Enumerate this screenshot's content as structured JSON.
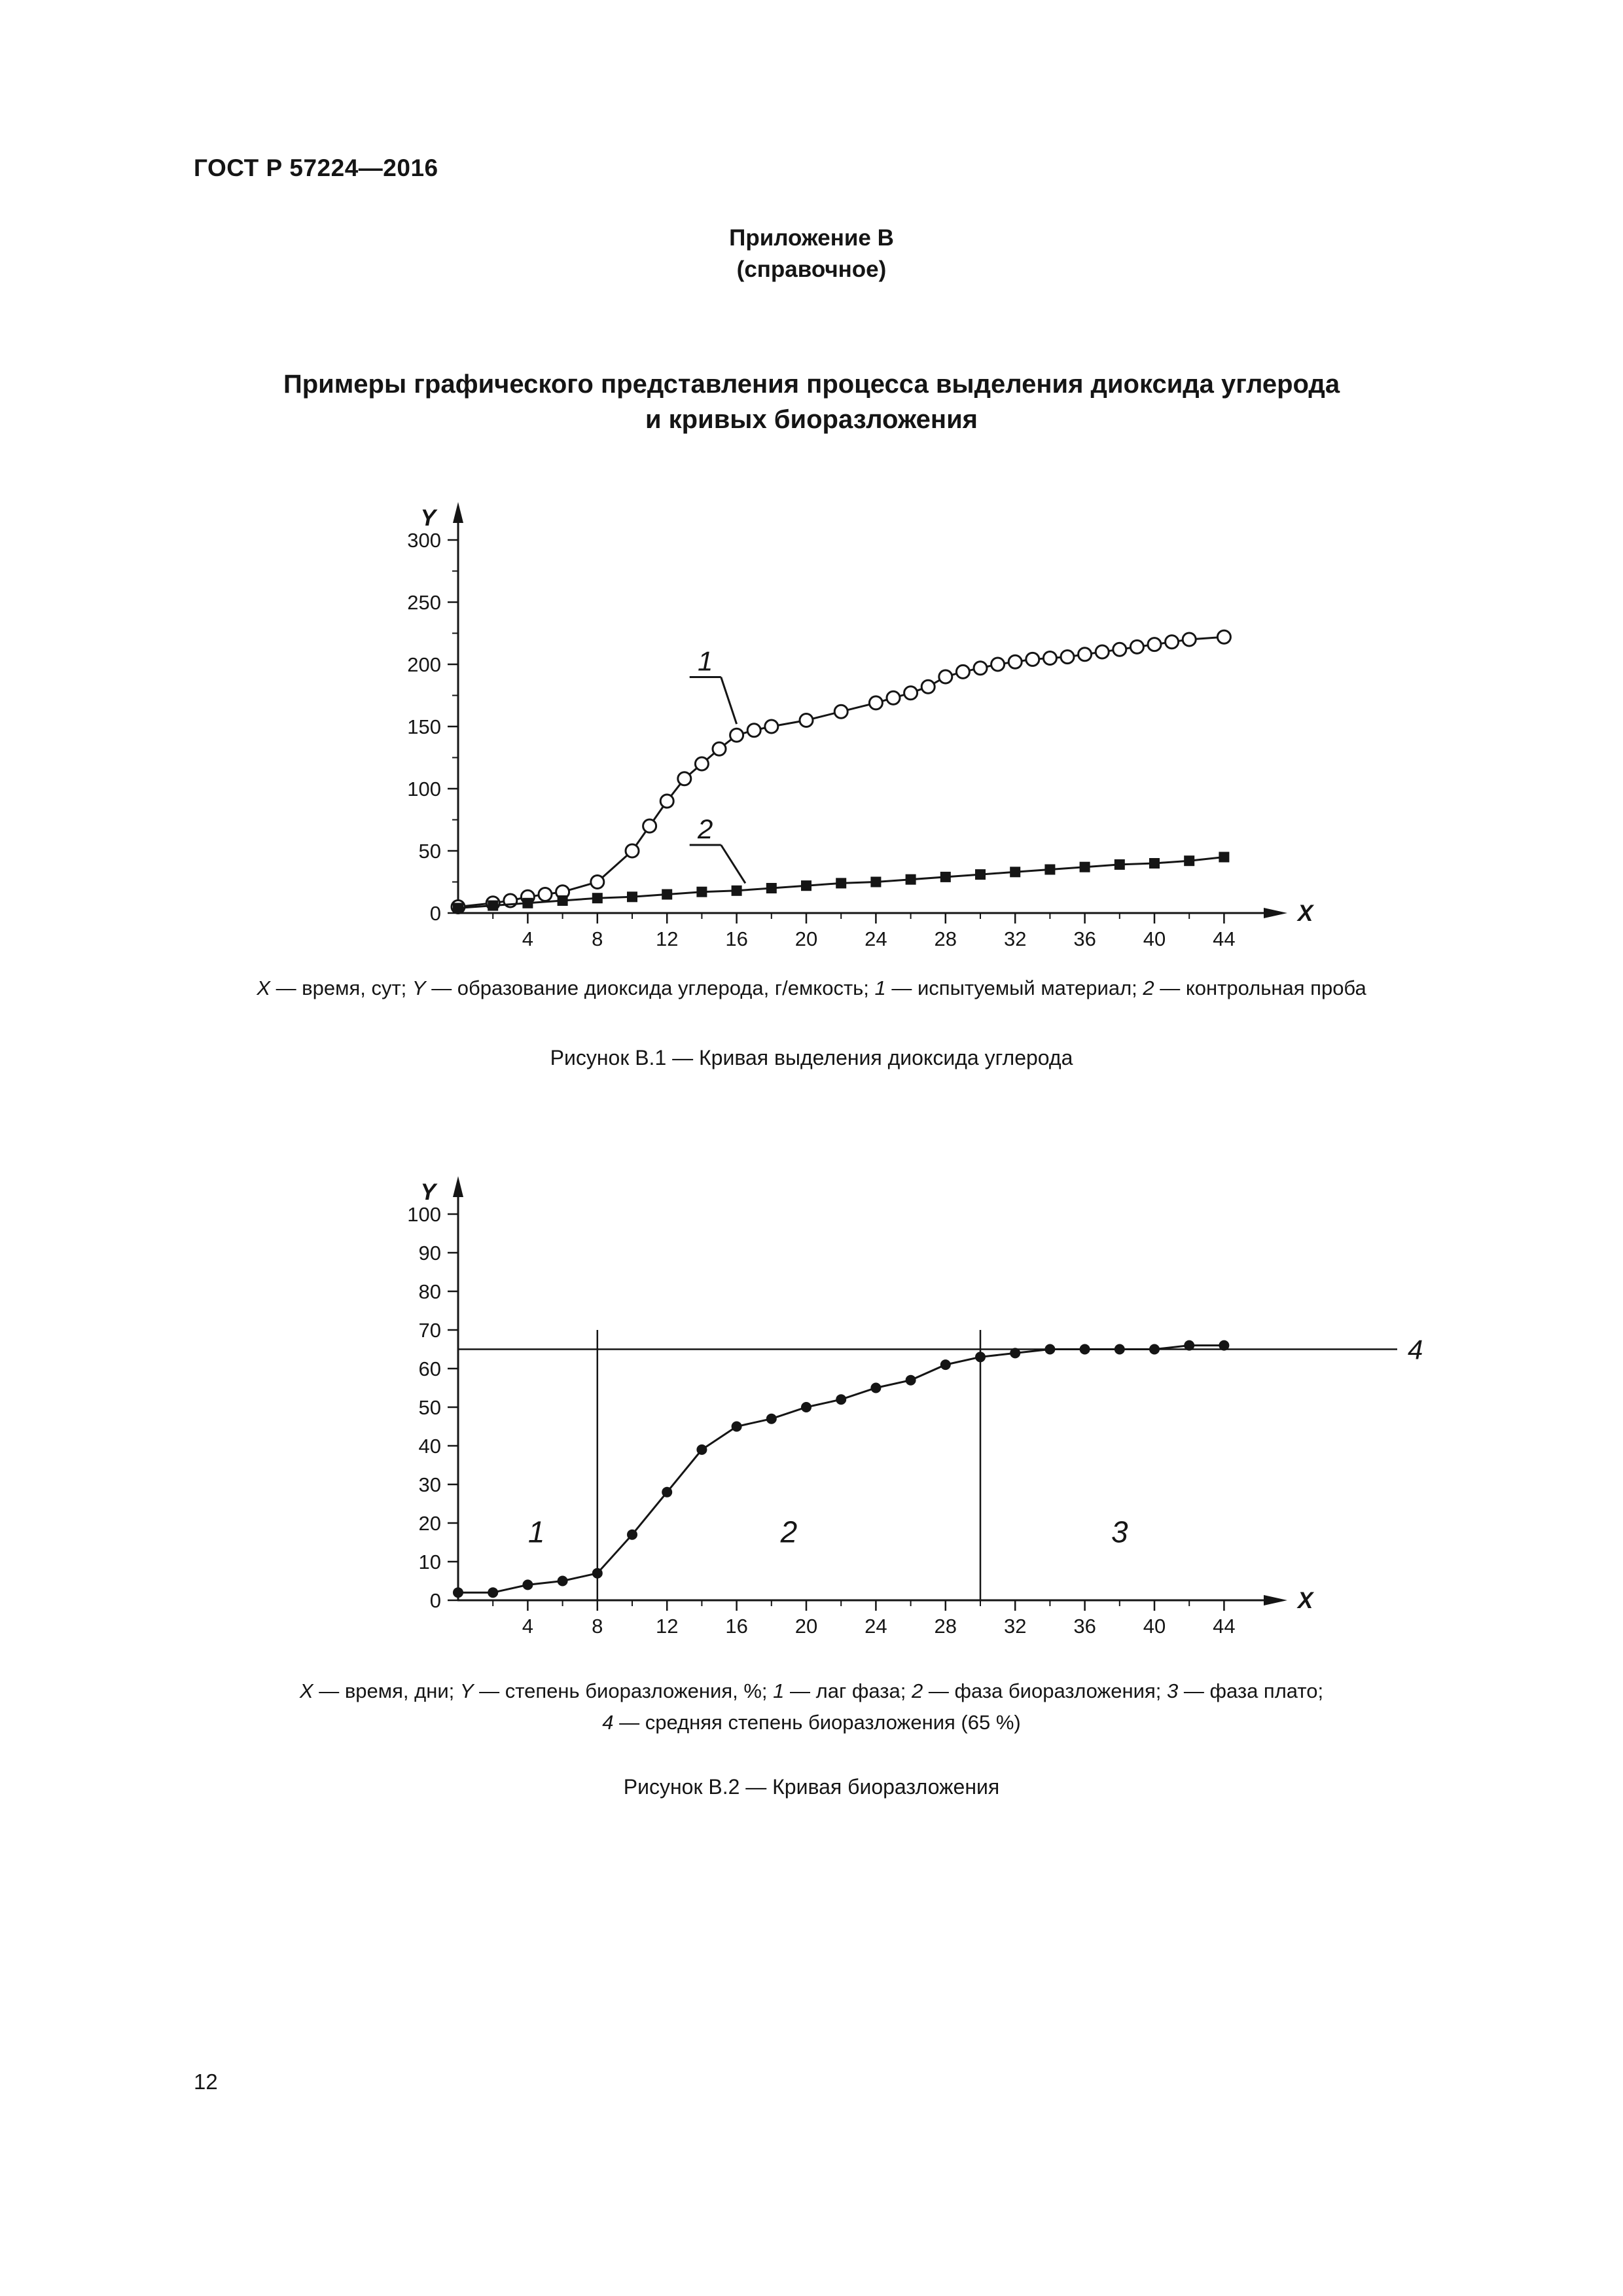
{
  "page": {
    "header": "ГОСТ Р 57224—2016",
    "number": "12"
  },
  "appendix": {
    "title": "Приложение В",
    "subtitle": "(справочное)"
  },
  "section": {
    "title_line1": "Примеры графического представления процесса выделения диоксида углерода",
    "title_line2": "и кривых биоразложения"
  },
  "figure1": {
    "legend_segments": [
      {
        "t": "X",
        "i": true
      },
      {
        "t": " — время, сут; ",
        "i": false
      },
      {
        "t": "Y",
        "i": true
      },
      {
        "t": " — образование диоксида углерода, г/емкость; ",
        "i": false
      },
      {
        "t": "1",
        "i": true
      },
      {
        "t": " — испытуемый материал; ",
        "i": false
      },
      {
        "t": "2",
        "i": true
      },
      {
        "t": " — контрольная проба",
        "i": false
      }
    ],
    "caption": "Рисунок В.1 — Кривая выделения диоксида углерода"
  },
  "figure2": {
    "legend_line1_segments": [
      {
        "t": "X",
        "i": true
      },
      {
        "t": " — время, дни; ",
        "i": false
      },
      {
        "t": "Y",
        "i": true
      },
      {
        "t": " — степень биоразложения, %; ",
        "i": false
      },
      {
        "t": "1",
        "i": true
      },
      {
        "t": " — лаг фаза; ",
        "i": false
      },
      {
        "t": "2",
        "i": true
      },
      {
        "t": " — фаза биоразложения; ",
        "i": false
      },
      {
        "t": "3",
        "i": true
      },
      {
        "t": " — фаза плато;",
        "i": false
      }
    ],
    "legend_line2_segments": [
      {
        "t": "4",
        "i": true
      },
      {
        "t": " — средняя степень биоразложения (65 %)",
        "i": false
      }
    ],
    "caption": "Рисунок В.2 — Кривая биоразложения"
  },
  "chart_data": [
    {
      "type": "line",
      "title": "Рисунок В.1 — Кривая выделения диоксида углерода",
      "xlabel": "X",
      "ylabel": "Y",
      "xlim": [
        0,
        46
      ],
      "ylim": [
        0,
        310
      ],
      "x_ticks": [
        4,
        8,
        12,
        16,
        20,
        24,
        28,
        32,
        36,
        40,
        44
      ],
      "x_minor_step": 2,
      "y_ticks": [
        0,
        50,
        100,
        150,
        200,
        250,
        300
      ],
      "y_minor_step": 25,
      "series": [
        {
          "name": "испытуемый материал",
          "label": "1",
          "marker": "circle-open",
          "x": [
            0,
            2,
            3,
            4,
            5,
            6,
            8,
            10,
            11,
            12,
            13,
            14,
            15,
            16,
            17,
            18,
            20,
            22,
            24,
            25,
            26,
            27,
            28,
            29,
            30,
            31,
            32,
            33,
            34,
            35,
            36,
            37,
            38,
            39,
            40,
            41,
            42,
            44
          ],
          "y": [
            5,
            8,
            10,
            13,
            15,
            17,
            25,
            50,
            70,
            90,
            108,
            120,
            132,
            143,
            147,
            150,
            155,
            162,
            169,
            173,
            177,
            182,
            190,
            194,
            197,
            200,
            202,
            204,
            205,
            206,
            208,
            210,
            212,
            214,
            216,
            218,
            220,
            222
          ],
          "pointer": {
            "label_x": 14.2,
            "label_y": 195,
            "tip_x": 16,
            "tip_y": 152
          }
        },
        {
          "name": "контрольная проба",
          "label": "2",
          "marker": "square-filled",
          "x": [
            0,
            2,
            4,
            6,
            8,
            10,
            12,
            14,
            16,
            18,
            20,
            22,
            24,
            26,
            28,
            30,
            32,
            34,
            36,
            38,
            40,
            42,
            44
          ],
          "y": [
            4,
            6,
            8,
            10,
            12,
            13,
            15,
            17,
            18,
            20,
            22,
            24,
            25,
            27,
            29,
            31,
            33,
            35,
            37,
            39,
            40,
            42,
            45
          ],
          "pointer": {
            "label_x": 14.2,
            "label_y": 60,
            "tip_x": 16.5,
            "tip_y": 24
          }
        }
      ]
    },
    {
      "type": "line",
      "title": "Рисунок В.2 — Кривая биоразложения",
      "xlabel": "X",
      "ylabel": "Y",
      "xlim": [
        0,
        46
      ],
      "ylim": [
        0,
        105
      ],
      "x_ticks": [
        4,
        8,
        12,
        16,
        20,
        24,
        28,
        32,
        36,
        40,
        44
      ],
      "x_minor_step": 2,
      "y_ticks": [
        0,
        10,
        20,
        30,
        40,
        50,
        60,
        70,
        80,
        90,
        100
      ],
      "series": [
        {
          "name": "кривая биоразложения",
          "marker": "circle-filled",
          "x": [
            0,
            2,
            4,
            6,
            8,
            10,
            12,
            14,
            16,
            18,
            20,
            22,
            24,
            26,
            28,
            30,
            32,
            34,
            36,
            38,
            40,
            42,
            44
          ],
          "y": [
            2,
            2,
            4,
            5,
            7,
            17,
            28,
            39,
            45,
            47,
            50,
            52,
            55,
            57,
            61,
            63,
            64,
            65,
            65,
            65,
            65,
            66,
            66
          ]
        }
      ],
      "hline": {
        "y": 65,
        "label": "4"
      },
      "vlines": [
        {
          "x": 8,
          "y_top": 70
        },
        {
          "x": 30,
          "y_top": 70
        }
      ],
      "zones": [
        {
          "label": "1",
          "x": 4.5,
          "y": 15
        },
        {
          "label": "2",
          "x": 19,
          "y": 15
        },
        {
          "label": "3",
          "x": 38,
          "y": 15
        }
      ]
    }
  ]
}
